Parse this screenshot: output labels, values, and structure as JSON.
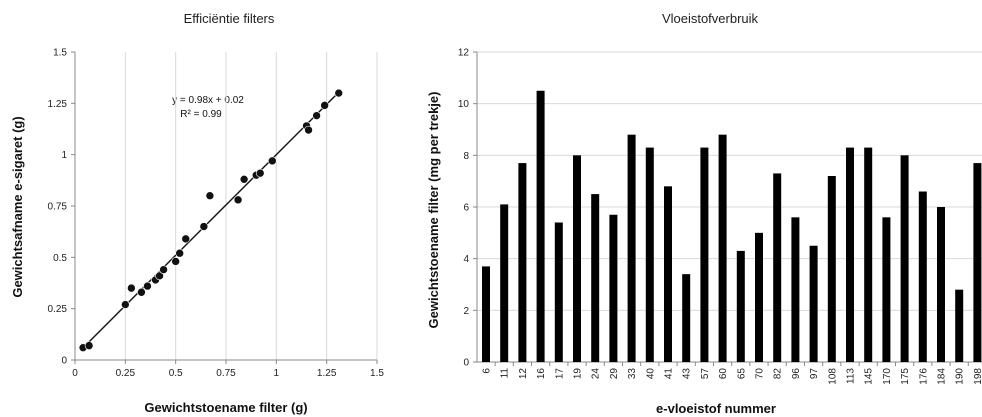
{
  "chart_data": [
    {
      "type": "scatter",
      "title": "Efficiëntie filters",
      "xlabel": "Gewichtstoename filter (g)",
      "ylabel": "Gewichtsafname e-sigaret (g)",
      "xlim": [
        0,
        1.5
      ],
      "ylim": [
        0,
        1.5
      ],
      "x_ticks": [
        "0",
        "0.25",
        "0.5",
        "0.75",
        "1",
        "1.25",
        "1.5"
      ],
      "y_ticks": [
        "0",
        "0.25",
        "0.5",
        "0.75",
        "1",
        "1.25",
        "1.5"
      ],
      "grid": "vertical",
      "points": [
        {
          "x": 0.04,
          "y": 0.06
        },
        {
          "x": 0.07,
          "y": 0.07
        },
        {
          "x": 0.25,
          "y": 0.27
        },
        {
          "x": 0.28,
          "y": 0.35
        },
        {
          "x": 0.33,
          "y": 0.33
        },
        {
          "x": 0.36,
          "y": 0.36
        },
        {
          "x": 0.4,
          "y": 0.39
        },
        {
          "x": 0.42,
          "y": 0.41
        },
        {
          "x": 0.44,
          "y": 0.44
        },
        {
          "x": 0.5,
          "y": 0.48
        },
        {
          "x": 0.52,
          "y": 0.52
        },
        {
          "x": 0.55,
          "y": 0.59
        },
        {
          "x": 0.64,
          "y": 0.65
        },
        {
          "x": 0.67,
          "y": 0.8
        },
        {
          "x": 0.81,
          "y": 0.78
        },
        {
          "x": 0.84,
          "y": 0.88
        },
        {
          "x": 0.9,
          "y": 0.9
        },
        {
          "x": 0.92,
          "y": 0.91
        },
        {
          "x": 0.98,
          "y": 0.97
        },
        {
          "x": 1.15,
          "y": 1.14
        },
        {
          "x": 1.16,
          "y": 1.12
        },
        {
          "x": 1.2,
          "y": 1.19
        },
        {
          "x": 1.24,
          "y": 1.24
        },
        {
          "x": 1.31,
          "y": 1.3
        }
      ],
      "trendline": {
        "slope": 0.98,
        "intercept": 0.02,
        "x_range": [
          0.04,
          1.31
        ]
      },
      "annotations": [
        "y = 0.98x + 0.02",
        "R² = 0.99"
      ]
    },
    {
      "type": "bar",
      "title": "Vloeistofverbruik",
      "xlabel": "e-vloeistof nummer",
      "ylabel": "Gewichtstoename filter (mg per trekje)",
      "ylim": [
        0,
        12
      ],
      "y_ticks": [
        "0",
        "2",
        "4",
        "6",
        "8",
        "10",
        "12"
      ],
      "grid": "horizontal",
      "categories": [
        "6",
        "11",
        "12",
        "16",
        "17",
        "19",
        "24",
        "29",
        "33",
        "40",
        "41",
        "43",
        "57",
        "60",
        "65",
        "70",
        "82",
        "96",
        "97",
        "108",
        "113",
        "145",
        "170",
        "175",
        "176",
        "184",
        "190",
        "198"
      ],
      "values": [
        3.7,
        6.1,
        7.7,
        10.5,
        5.4,
        8.0,
        6.5,
        5.7,
        8.8,
        8.3,
        6.8,
        3.4,
        8.3,
        8.8,
        4.3,
        5.0,
        7.3,
        5.6,
        4.5,
        7.2,
        8.3,
        8.3,
        5.6,
        8.0,
        6.6,
        6.0,
        2.8,
        7.7
      ]
    }
  ]
}
